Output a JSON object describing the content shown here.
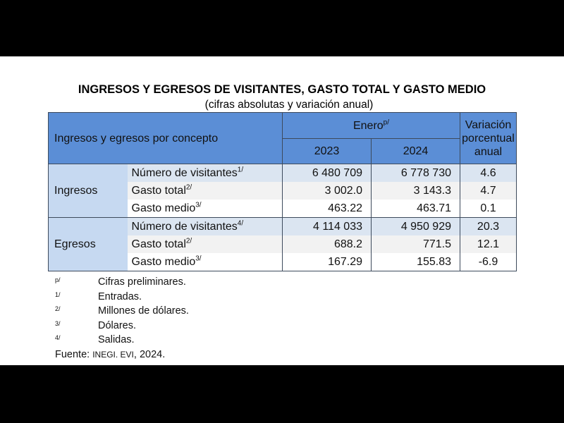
{
  "title": "INGRESOS Y EGRESOS DE VISITANTES, GASTO TOTAL Y GASTO MEDIO",
  "subtitle": "(cifras absolutas y variación anual)",
  "header": {
    "concept": "Ingresos y egresos por concepto",
    "period": "Enero",
    "period_mark": "p/",
    "years": [
      "2023",
      "2024"
    ],
    "variation": "Variación porcentual anual"
  },
  "groups": [
    {
      "name": "Ingresos",
      "rows": [
        {
          "concept": "Número de visitantes",
          "note": "1/",
          "v2023": "6 480 709",
          "v2024": "6 778 730",
          "var": "4.6"
        },
        {
          "concept": "Gasto total",
          "note": "2/",
          "v2023": "3 002.0",
          "v2024": "3 143.3",
          "var": "4.7"
        },
        {
          "concept": "Gasto medio",
          "note": "3/",
          "v2023": "463.22",
          "v2024": "463.71",
          "var": "0.1"
        }
      ]
    },
    {
      "name": "Egresos",
      "rows": [
        {
          "concept": "Número de visitantes",
          "note": "4/",
          "v2023": "4 114 033",
          "v2024": "4 950 929",
          "var": "20.3"
        },
        {
          "concept": "Gasto total",
          "note": "2/",
          "v2023": "688.2",
          "v2024": "771.5",
          "var": "12.1"
        },
        {
          "concept": "Gasto medio",
          "note": "3/",
          "v2023": "167.29",
          "v2024": "155.83",
          "var": "-6.9"
        }
      ]
    }
  ],
  "notes": [
    {
      "mark": "p/",
      "text": "Cifras preliminares."
    },
    {
      "mark": "1/",
      "text": "Entradas."
    },
    {
      "mark": "2/",
      "text": "Millones de dólares."
    },
    {
      "mark": "3/",
      "text": "Dólares."
    },
    {
      "mark": "4/",
      "text": "Salidas."
    }
  ],
  "source": {
    "label": "Fuente:",
    "org": "INEGI. EVI",
    "year": ", 2024."
  },
  "colors": {
    "header": "#5b8ed6",
    "group": "#c6d9f1",
    "row_alt": "#dbe5f1"
  }
}
